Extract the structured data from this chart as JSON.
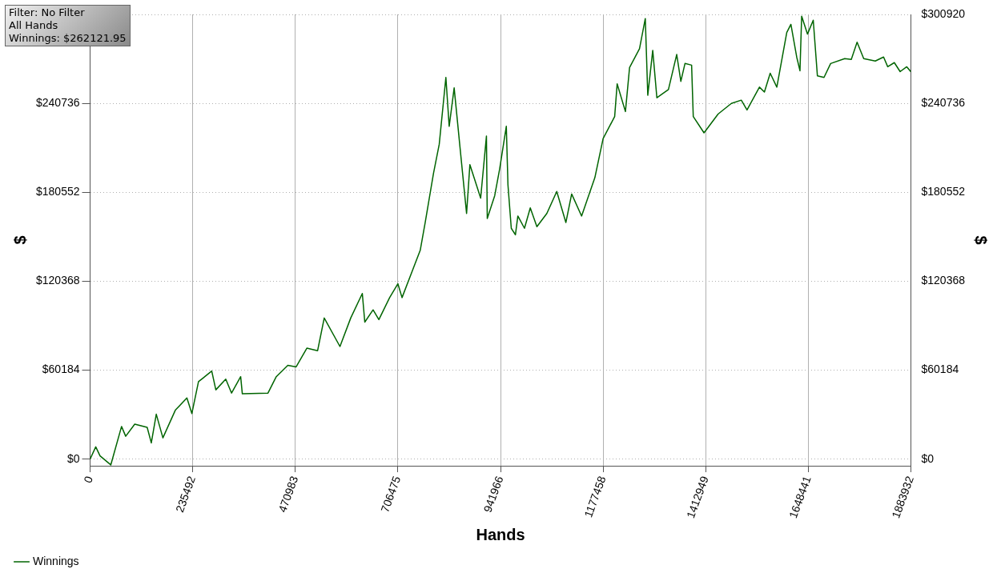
{
  "chart_data": {
    "type": "line",
    "xlabel": "Hands",
    "ylabel": "$",
    "y2label": "$",
    "annotations": [
      "Filter: No Filter",
      "All Hands",
      "Winnings: $262121.95"
    ],
    "xlim": [
      0,
      1883932
    ],
    "xticks": [
      0,
      235492,
      470983,
      706475,
      941966,
      1177458,
      1412949,
      1648441,
      1883932
    ],
    "ylim": [
      -4500,
      300920
    ],
    "yticks": [
      {
        "value": 0,
        "label": "$0"
      },
      {
        "value": 60184,
        "label": "$60184"
      },
      {
        "value": 120368,
        "label": "$120368"
      },
      {
        "value": 180552,
        "label": "$180552"
      },
      {
        "value": 240736,
        "label": "$240736"
      },
      {
        "value": 300920,
        "label": null
      }
    ],
    "y2lim": [
      -4500,
      300920
    ],
    "y2ticks": [
      {
        "value": 0,
        "label": "$0"
      },
      {
        "value": 60184,
        "label": "$60184"
      },
      {
        "value": 120368,
        "label": "$120368"
      },
      {
        "value": 180552,
        "label": "$180552"
      },
      {
        "value": 240736,
        "label": "$240736"
      },
      {
        "value": 300920,
        "label": "$300920"
      }
    ],
    "grid": true,
    "legend": "bottom left",
    "marker": "none",
    "line_style": "solid",
    "series": [
      {
        "name": "Winnings",
        "color": "#006400",
        "x": [
          0,
          13000,
          22800,
          47500,
          72200,
          81700,
          102500,
          131000,
          140500,
          151900,
          167100,
          195600,
          222200,
          233600,
          248800,
          279200,
          288600,
          311400,
          324700,
          345600,
          349400,
          408300,
          427300,
          453900,
          472900,
          497500,
          522200,
          537400,
          573500,
          598200,
          624800,
          630500,
          649500,
          662800,
          687500,
          706400,
          716000,
          757700,
          769100,
          788100,
          801400,
          816600,
          824200,
          835600,
          848900,
          864100,
          871700,
          896400,
          909700,
          911600,
          928700,
          940100,
          955300,
          959100,
          966700,
          976200,
          981800,
          997000,
          1010300,
          1025500,
          1048300,
          1071100,
          1092000,
          1105300,
          1128100,
          1158500,
          1177500,
          1204000,
          1209700,
          1228700,
          1238200,
          1261000,
          1274300,
          1280000,
          1291400,
          1300900,
          1327400,
          1346400,
          1355900,
          1365400,
          1380600,
          1384400,
          1409100,
          1441400,
          1471800,
          1494600,
          1507800,
          1536300,
          1547700,
          1561000,
          1576200,
          1599000,
          1608500,
          1621800,
          1629300,
          1633200,
          1646500,
          1659800,
          1669300,
          1684500,
          1699700,
          1732000,
          1747100,
          1760400,
          1775600,
          1802200,
          1821200,
          1830700,
          1845900,
          1859200,
          1874400,
          1883932
        ],
        "values": [
          0,
          8300,
          2200,
          -3900,
          22100,
          15500,
          23700,
          21500,
          11000,
          30400,
          14400,
          33100,
          41400,
          30900,
          52400,
          59600,
          46900,
          54100,
          44700,
          55800,
          44200,
          44700,
          55800,
          63500,
          62400,
          75100,
          73400,
          95500,
          76200,
          95500,
          112100,
          92700,
          101000,
          94400,
          109300,
          118700,
          109300,
          141300,
          160100,
          193200,
          213100,
          258300,
          225200,
          251200,
          211400,
          166200,
          199300,
          176600,
          218600,
          162800,
          178300,
          196500,
          225200,
          185500,
          156200,
          151800,
          164500,
          156200,
          170000,
          157300,
          166200,
          181100,
          160100,
          179400,
          164500,
          190400,
          216900,
          231800,
          253900,
          235200,
          265000,
          277700,
          298100,
          246200,
          276600,
          244500,
          250100,
          273800,
          255600,
          267700,
          266600,
          231800,
          220800,
          233500,
          240700,
          242900,
          236300,
          251700,
          248400,
          261100,
          251700,
          288700,
          294200,
          272100,
          262800,
          299700,
          287600,
          297000,
          259400,
          258300,
          267700,
          271000,
          270500,
          282100,
          271000,
          269400,
          272100,
          265500,
          268300,
          262200,
          265500,
          262122
        ]
      }
    ]
  }
}
